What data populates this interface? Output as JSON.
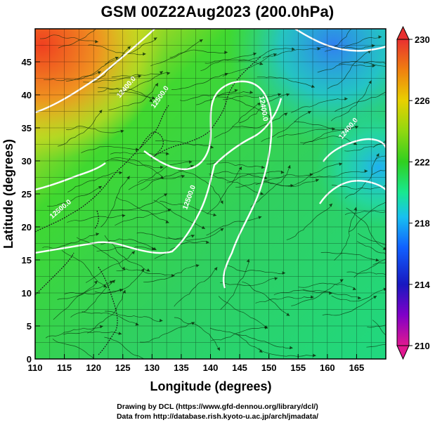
{
  "title": "GSM 00Z22Aug2023 (200.0hPa)",
  "x_axis": {
    "label": "Longitude (degrees)",
    "ticks": [
      "110",
      "115",
      "120",
      "125",
      "130",
      "135",
      "140",
      "145",
      "150",
      "155",
      "160",
      "165"
    ],
    "range": [
      110,
      170
    ]
  },
  "y_axis": {
    "label": "Latitude  (degrees)",
    "ticks": [
      "0",
      "5",
      "10",
      "15",
      "20",
      "25",
      "30",
      "35",
      "40",
      "45"
    ],
    "range": [
      0,
      50
    ]
  },
  "colorbar": {
    "ticks": [
      "230",
      "226",
      "222",
      "218",
      "214",
      "210"
    ],
    "range": [
      210,
      230
    ],
    "colors": [
      "#e01890",
      "#8000c8",
      "#1818c0",
      "#1060ff",
      "#18c0f0",
      "#18e890",
      "#30d020",
      "#90d810",
      "#e8d000",
      "#f08010",
      "#e83030"
    ]
  },
  "contours": [
    {
      "label": "12400.0"
    },
    {
      "label": "12500.0"
    },
    {
      "label": "12500.0"
    },
    {
      "label": "12400.0"
    },
    {
      "label": "12400.0"
    },
    {
      "label": "12500.0"
    }
  ],
  "footer": {
    "line1": "Drawing by DCL (https://www.gfd-dennou.org/library/dcl/)",
    "line2": "Data from http://database.rish.kyoto-u.ac.jp/arch/jmadata/"
  }
}
